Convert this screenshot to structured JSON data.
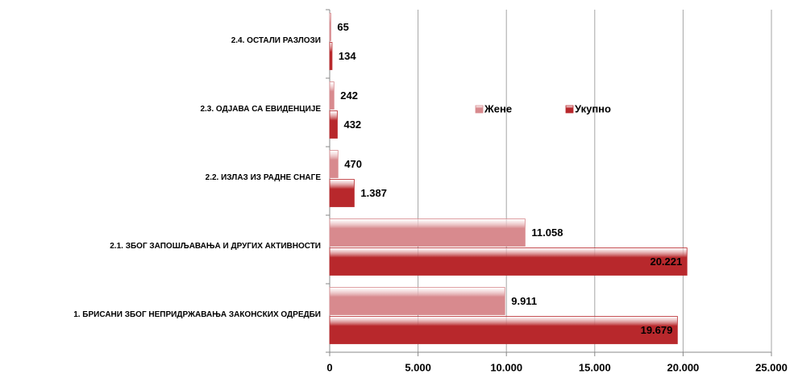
{
  "chart_data": {
    "type": "bar",
    "orientation": "horizontal",
    "categories": [
      "2.4. ОСТАЛИ РАЗЛОЗИ",
      "2.3. ОДЈАВА СА ЕВИДЕНЦИЈЕ",
      "2.2. ИЗЛАЗ ИЗ РАДНЕ СНАГЕ",
      "2.1. ЗБОГ ЗАПОШЉАВАЊА И ДРУГИХ АКТИВНОСТИ",
      "1. БРИСАНИ ЗБОГ НЕПРИДРЖАВАЊА ЗАКОНСКИХ ОДРЕДБИ"
    ],
    "series": [
      {
        "name": "Жене",
        "color": "#d88a8e",
        "values": [
          65,
          242,
          470,
          11058,
          9911
        ],
        "value_labels": [
          "65",
          "242",
          "470",
          "11.058",
          "9.911"
        ]
      },
      {
        "name": "Укупно",
        "color": "#b8282c",
        "values": [
          134,
          432,
          1387,
          20221,
          19679
        ],
        "value_labels": [
          "134",
          "432",
          "1.387",
          "20.221",
          "19.679"
        ]
      }
    ],
    "xlim": [
      0,
      25000
    ],
    "xticks": [
      0,
      {
        "value": 5000,
        "label": "5.000"
      },
      {
        "value": 10000,
        "label": "10.000"
      },
      {
        "value": 15000,
        "label": "15.000"
      },
      {
        "value": 20000,
        "label": "20.000"
      },
      {
        "value": 25000,
        "label": "25.000"
      }
    ],
    "grid": true
  }
}
